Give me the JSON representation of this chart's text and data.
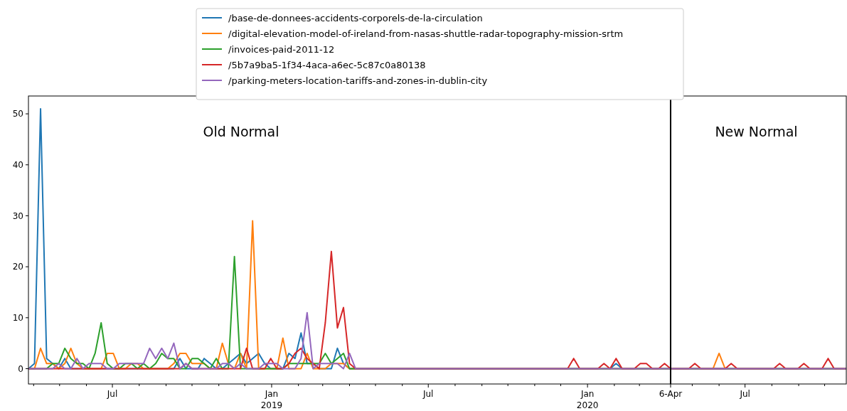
{
  "chart_data": {
    "type": "line",
    "legend": "top",
    "grid": false,
    "xlim": [
      "2018-03-26",
      "2020-10-26"
    ],
    "xticks": [
      {
        "value": "2018-04-01",
        "label": null
      },
      {
        "value": "2018-05-01",
        "label": null
      },
      {
        "value": "2018-06-01",
        "label": null
      },
      {
        "value": "2018-07-01",
        "label": "Jul"
      },
      {
        "value": "2018-08-01",
        "label": null
      },
      {
        "value": "2018-09-01",
        "label": null
      },
      {
        "value": "2018-10-01",
        "label": null
      },
      {
        "value": "2018-11-01",
        "label": null
      },
      {
        "value": "2018-12-01",
        "label": null
      },
      {
        "value": "2019-01-01",
        "label": "Jan\n2019"
      },
      {
        "value": "2019-02-01",
        "label": null
      },
      {
        "value": "2019-03-01",
        "label": null
      },
      {
        "value": "2019-04-01",
        "label": null
      },
      {
        "value": "2019-05-01",
        "label": null
      },
      {
        "value": "2019-06-01",
        "label": null
      },
      {
        "value": "2019-07-01",
        "label": "Jul"
      },
      {
        "value": "2019-08-01",
        "label": null
      },
      {
        "value": "2019-09-01",
        "label": null
      },
      {
        "value": "2019-10-01",
        "label": null
      },
      {
        "value": "2019-11-01",
        "label": null
      },
      {
        "value": "2019-12-01",
        "label": null
      },
      {
        "value": "2020-01-01",
        "label": "Jan\n2020"
      },
      {
        "value": "2020-02-01",
        "label": null
      },
      {
        "value": "2020-03-01",
        "label": null
      },
      {
        "value": "2020-04-06",
        "label": "6-Apr"
      },
      {
        "value": "2020-05-01",
        "label": null
      },
      {
        "value": "2020-06-01",
        "label": null
      },
      {
        "value": "2020-07-01",
        "label": "Jul"
      },
      {
        "value": "2020-08-01",
        "label": null
      },
      {
        "value": "2020-09-01",
        "label": null
      },
      {
        "value": "2020-10-01",
        "label": null
      }
    ],
    "ylim": [
      -3,
      53.5
    ],
    "yticks": [
      0,
      10,
      20,
      30,
      40,
      50
    ],
    "ref_lines": [
      {
        "axis": "x",
        "value": "2020-04-06",
        "label": null,
        "color": "#000000"
      }
    ],
    "annotations": [
      "Old Normal",
      "New Normal"
    ],
    "series": [
      {
        "name": "/base-de-donnees-accidents-corporels-de-la-circulation",
        "color": "#1f77b4",
        "x": [
          "2018-03-26",
          "2018-04-02",
          "2018-04-09",
          "2018-04-16",
          "2018-04-23",
          "2018-04-30",
          "2018-05-07",
          "2018-05-14",
          "2018-09-10",
          "2018-09-17",
          "2018-09-24",
          "2018-10-08",
          "2018-10-15",
          "2018-10-22",
          "2018-10-29",
          "2018-11-05",
          "2018-11-12",
          "2018-11-19",
          "2018-11-26",
          "2018-12-03",
          "2018-12-10",
          "2018-12-17",
          "2018-12-24",
          "2018-12-31",
          "2019-01-14",
          "2019-01-21",
          "2019-01-28",
          "2019-02-04",
          "2019-02-11",
          "2019-02-18",
          "2019-02-25",
          "2019-03-11",
          "2019-03-18",
          "2019-03-25",
          "2019-04-01",
          "2020-01-27",
          "2020-02-03",
          "2020-02-10",
          "2020-10-26"
        ],
        "values": [
          0,
          1,
          51,
          2,
          1,
          0,
          2,
          0,
          0,
          2,
          0,
          0,
          2,
          1,
          0,
          0,
          1,
          2,
          3,
          1,
          2,
          3,
          1,
          0,
          0,
          3,
          2,
          7,
          1,
          1,
          0,
          0,
          4,
          1,
          0,
          0,
          1,
          0,
          0
        ]
      },
      {
        "name": "/digital-elevation-model-of-ireland-from-nasas-shuttle-radar-topography-mission-srtm",
        "color": "#ff7f0e",
        "x": [
          "2018-03-26",
          "2018-04-02",
          "2018-04-09",
          "2018-04-16",
          "2018-04-23",
          "2018-04-30",
          "2018-05-07",
          "2018-05-14",
          "2018-05-21",
          "2018-05-28",
          "2018-06-18",
          "2018-06-25",
          "2018-07-02",
          "2018-07-09",
          "2018-07-16",
          "2018-07-23",
          "2018-07-30",
          "2018-08-06",
          "2018-09-03",
          "2018-09-10",
          "2018-09-17",
          "2018-09-24",
          "2018-10-01",
          "2018-10-08",
          "2018-10-15",
          "2018-10-22",
          "2018-10-29",
          "2018-11-05",
          "2018-11-12",
          "2018-11-19",
          "2018-11-26",
          "2018-12-03",
          "2018-12-10",
          "2018-12-17",
          "2019-01-07",
          "2019-01-14",
          "2019-01-21",
          "2019-02-04",
          "2019-02-11",
          "2019-02-18",
          "2019-03-04",
          "2019-03-11",
          "2019-03-18",
          "2019-03-25",
          "2019-04-01",
          "2020-05-25",
          "2020-06-01",
          "2020-06-08",
          "2020-10-26"
        ],
        "values": [
          0,
          0,
          4,
          1,
          1,
          0,
          1,
          4,
          1,
          0,
          0,
          3,
          3,
          0,
          0,
          1,
          1,
          0,
          0,
          1,
          3,
          3,
          1,
          1,
          1,
          0,
          0,
          5,
          1,
          0,
          3,
          0,
          29,
          0,
          0,
          6,
          0,
          0,
          3,
          0,
          0,
          1,
          1,
          1,
          0,
          0,
          3,
          0,
          0
        ]
      },
      {
        "name": "/invoices-paid-2011-12",
        "color": "#2ca02c",
        "x": [
          "2018-03-26",
          "2018-04-16",
          "2018-04-23",
          "2018-04-30",
          "2018-05-07",
          "2018-05-14",
          "2018-05-21",
          "2018-05-28",
          "2018-06-04",
          "2018-06-11",
          "2018-06-18",
          "2018-06-25",
          "2018-07-02",
          "2018-07-09",
          "2018-07-16",
          "2018-07-23",
          "2018-07-30",
          "2018-08-06",
          "2018-08-13",
          "2018-08-20",
          "2018-08-27",
          "2018-09-03",
          "2018-09-10",
          "2018-09-17",
          "2018-09-24",
          "2018-10-01",
          "2018-10-08",
          "2018-10-15",
          "2018-10-22",
          "2018-10-29",
          "2018-11-05",
          "2018-11-12",
          "2018-11-19",
          "2018-11-26",
          "2019-01-14",
          "2019-01-21",
          "2019-02-25",
          "2019-03-04",
          "2019-03-11",
          "2019-03-18",
          "2019-03-25",
          "2019-04-01",
          "2020-10-26"
        ],
        "values": [
          0,
          0,
          1,
          1,
          4,
          2,
          1,
          1,
          0,
          3,
          9,
          1,
          0,
          0,
          1,
          1,
          0,
          1,
          0,
          1,
          3,
          2,
          2,
          0,
          0,
          2,
          2,
          1,
          0,
          2,
          0,
          0,
          22,
          0,
          0,
          1,
          1,
          3,
          1,
          2,
          3,
          0,
          0
        ]
      },
      {
        "name": "/5b7a9ba5-1f34-4aca-a6ec-5c87c0a80138",
        "color": "#d62728",
        "x": [
          "2018-03-26",
          "2018-09-17",
          "2018-09-24",
          "2018-10-01",
          "2018-11-26",
          "2018-12-03",
          "2018-12-10",
          "2018-12-24",
          "2018-12-31",
          "2019-01-07",
          "2019-01-14",
          "2019-01-21",
          "2019-01-28",
          "2019-02-04",
          "2019-02-11",
          "2019-02-18",
          "2019-02-25",
          "2019-03-04",
          "2019-03-11",
          "2019-03-18",
          "2019-03-25",
          "2019-04-01",
          "2019-04-08",
          "2019-12-09",
          "2019-12-16",
          "2019-12-23",
          "2020-01-13",
          "2020-01-20",
          "2020-01-27",
          "2020-02-03",
          "2020-02-10",
          "2020-02-24",
          "2020-03-02",
          "2020-03-09",
          "2020-03-16",
          "2020-03-23",
          "2020-03-30",
          "2020-04-06",
          "2020-04-27",
          "2020-05-04",
          "2020-05-11",
          "2020-06-08",
          "2020-06-15",
          "2020-06-22",
          "2020-08-03",
          "2020-08-10",
          "2020-08-17",
          "2020-08-31",
          "2020-09-07",
          "2020-09-14",
          "2020-09-28",
          "2020-10-05",
          "2020-10-12",
          "2020-10-26"
        ],
        "values": [
          0,
          0,
          1,
          0,
          0,
          4,
          0,
          0,
          2,
          0,
          0,
          1,
          3,
          4,
          2,
          1,
          0,
          9,
          23,
          8,
          12,
          1,
          0,
          0,
          2,
          0,
          0,
          1,
          0,
          2,
          0,
          0,
          1,
          1,
          0,
          0,
          1,
          0,
          0,
          1,
          0,
          0,
          1,
          0,
          0,
          1,
          0,
          0,
          1,
          0,
          0,
          2,
          0,
          0
        ]
      },
      {
        "name": "/parking-meters-location-tariffs-and-zones-in-dublin-city",
        "color": "#9467bd",
        "x": [
          "2018-03-26",
          "2018-04-23",
          "2018-04-30",
          "2018-05-07",
          "2018-05-14",
          "2018-05-21",
          "2018-05-28",
          "2018-06-04",
          "2018-06-18",
          "2018-06-25",
          "2018-07-02",
          "2018-07-09",
          "2018-08-06",
          "2018-08-13",
          "2018-08-20",
          "2018-08-27",
          "2018-09-03",
          "2018-09-10",
          "2018-09-17",
          "2018-09-24",
          "2018-10-01",
          "2018-10-29",
          "2018-11-05",
          "2018-11-12",
          "2018-11-19",
          "2018-11-26",
          "2018-12-03",
          "2018-12-17",
          "2018-12-24",
          "2019-01-07",
          "2019-01-14",
          "2019-01-28",
          "2019-02-04",
          "2019-02-11",
          "2019-02-18",
          "2019-02-25",
          "2019-03-18",
          "2019-03-25",
          "2019-04-01",
          "2019-04-08",
          "2020-10-26"
        ],
        "values": [
          0,
          0,
          1,
          0,
          0,
          2,
          0,
          1,
          1,
          0,
          0,
          1,
          1,
          4,
          2,
          4,
          2,
          5,
          0,
          1,
          0,
          0,
          1,
          1,
          0,
          1,
          0,
          0,
          1,
          1,
          0,
          0,
          2,
          11,
          0,
          1,
          1,
          0,
          3,
          0,
          0
        ]
      }
    ]
  }
}
